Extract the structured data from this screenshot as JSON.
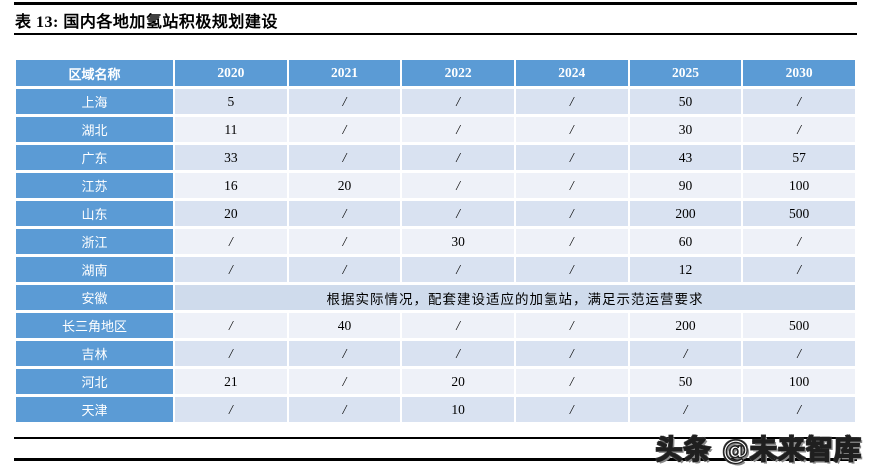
{
  "title": "表 13:  国内各地加氢站积极规划建设",
  "watermark": "头条 @未来智库",
  "colors": {
    "header_blue": "#5b9bd5",
    "row_dark": "#d9e2f1",
    "row_light": "#eef1f8",
    "row_merged": "#cfdbec"
  },
  "table": {
    "columns": [
      "区域名称",
      "2020",
      "2021",
      "2022",
      "2024",
      "2025",
      "2030"
    ],
    "rows": [
      {
        "name": "上海",
        "shade": "dark",
        "values": [
          "5",
          "/",
          "/",
          "/",
          "50",
          "/"
        ]
      },
      {
        "name": "湖北",
        "shade": "light",
        "values": [
          "11",
          "/",
          "/",
          "/",
          "30",
          "/"
        ]
      },
      {
        "name": "广东",
        "shade": "dark",
        "values": [
          "33",
          "/",
          "/",
          "/",
          "43",
          "57"
        ]
      },
      {
        "name": "江苏",
        "shade": "light",
        "values": [
          "16",
          "20",
          "/",
          "/",
          "90",
          "100"
        ]
      },
      {
        "name": "山东",
        "shade": "dark",
        "values": [
          "20",
          "/",
          "/",
          "/",
          "200",
          "500"
        ]
      },
      {
        "name": "浙江",
        "shade": "light",
        "values": [
          "/",
          "/",
          "30",
          "/",
          "60",
          "/"
        ]
      },
      {
        "name": "湖南",
        "shade": "dark",
        "values": [
          "/",
          "/",
          "/",
          "/",
          "12",
          "/"
        ]
      },
      {
        "name": "安徽",
        "shade": "dark",
        "merged_text": "根据实际情况，配套建设适应的加氢站，满足示范运营要求"
      },
      {
        "name": "长三角地区",
        "shade": "light",
        "values": [
          "/",
          "40",
          "/",
          "/",
          "200",
          "500"
        ]
      },
      {
        "name": "吉林",
        "shade": "dark",
        "values": [
          "/",
          "/",
          "/",
          "/",
          "/",
          "/"
        ]
      },
      {
        "name": "河北",
        "shade": "light",
        "values": [
          "21",
          "/",
          "20",
          "/",
          "50",
          "100"
        ]
      },
      {
        "name": "天津",
        "shade": "dark",
        "values": [
          "/",
          "/",
          "10",
          "/",
          "/",
          "/"
        ]
      }
    ]
  }
}
